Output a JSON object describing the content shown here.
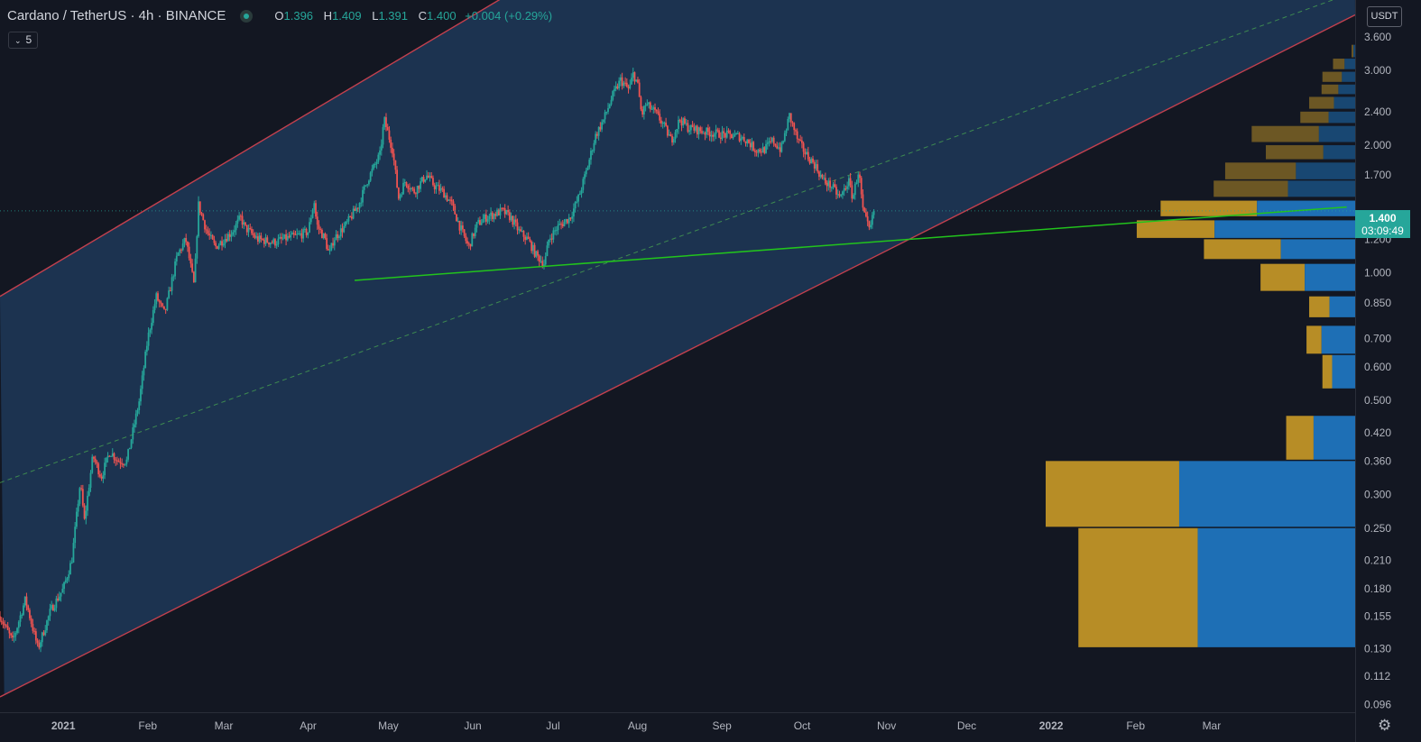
{
  "header": {
    "symbol": "Cardano / TetherUS",
    "interval": "4h",
    "exchange": "BINANCE",
    "ohlc": {
      "o_label": "O",
      "o": "1.396",
      "h_label": "H",
      "h": "1.409",
      "l_label": "L",
      "l": "1.391",
      "c_label": "C",
      "c": "1.400",
      "change": "+0.004 (+0.29%)"
    },
    "indicator_count": "5"
  },
  "currency_badge": "USDT",
  "last_price": {
    "value": "1.400",
    "countdown": "03:09:49"
  },
  "colors": {
    "background": "#131722",
    "channel_fill": "#1c3553",
    "channel_border": "#c2404e",
    "trendline": "#22c41c",
    "midline": "#4caf50",
    "up": "#26a69a",
    "down": "#ef5350",
    "vp_buy": "#b78d26",
    "vp_sell": "#1e6fb5"
  },
  "chart_data": {
    "type": "candlestick",
    "symbol": "ADAUSDT",
    "timeframe": "4h",
    "y_scale": "log",
    "ylim": [
      0.092,
      4.4
    ],
    "y_ticks": [
      {
        "v": 3.6,
        "label": "3.600"
      },
      {
        "v": 3.0,
        "label": "3.000"
      },
      {
        "v": 2.4,
        "label": "2.400"
      },
      {
        "v": 2.0,
        "label": "2.000"
      },
      {
        "v": 1.7,
        "label": "1.700"
      },
      {
        "v": 1.2,
        "label": "1.200"
      },
      {
        "v": 1.0,
        "label": "1.000"
      },
      {
        "v": 0.85,
        "label": "0.850"
      },
      {
        "v": 0.7,
        "label": "0.700"
      },
      {
        "v": 0.6,
        "label": "0.600"
      },
      {
        "v": 0.5,
        "label": "0.500"
      },
      {
        "v": 0.42,
        "label": "0.420"
      },
      {
        "v": 0.36,
        "label": "0.360"
      },
      {
        "v": 0.3,
        "label": "0.300"
      },
      {
        "v": 0.25,
        "label": "0.250"
      },
      {
        "v": 0.21,
        "label": "0.210"
      },
      {
        "v": 0.18,
        "label": "0.180"
      },
      {
        "v": 0.155,
        "label": "0.155"
      },
      {
        "v": 0.13,
        "label": "0.130"
      },
      {
        "v": 0.112,
        "label": "0.112"
      },
      {
        "v": 0.096,
        "label": "0.096"
      }
    ],
    "x_labels": [
      {
        "t": 0.0,
        "label": "2021",
        "bold": true
      },
      {
        "t": 1.0,
        "label": "Feb",
        "bold": false
      },
      {
        "t": 1.9,
        "label": "Mar",
        "bold": false
      },
      {
        "t": 2.9,
        "label": "Apr",
        "bold": false
      },
      {
        "t": 3.85,
        "label": "May",
        "bold": false
      },
      {
        "t": 4.85,
        "label": "Jun",
        "bold": false
      },
      {
        "t": 5.8,
        "label": "Jul",
        "bold": false
      },
      {
        "t": 6.8,
        "label": "Aug",
        "bold": false
      },
      {
        "t": 7.8,
        "label": "Sep",
        "bold": false
      },
      {
        "t": 8.75,
        "label": "Oct",
        "bold": false
      },
      {
        "t": 9.75,
        "label": "Nov",
        "bold": false
      },
      {
        "t": 10.7,
        "label": "Dec",
        "bold": false
      },
      {
        "t": 11.7,
        "label": "2022",
        "bold": true
      },
      {
        "t": 12.7,
        "label": "Feb",
        "bold": false
      },
      {
        "t": 13.6,
        "label": "Mar",
        "bold": false
      }
    ],
    "x_range_months": [
      -0.75,
      15.3
    ],
    "price_path": [
      [
        -0.75,
        0.155
      ],
      [
        -0.6,
        0.135
      ],
      [
        -0.45,
        0.17
      ],
      [
        -0.3,
        0.13
      ],
      [
        -0.15,
        0.16
      ],
      [
        0.0,
        0.18
      ],
      [
        0.1,
        0.21
      ],
      [
        0.2,
        0.32
      ],
      [
        0.25,
        0.26
      ],
      [
        0.35,
        0.37
      ],
      [
        0.45,
        0.33
      ],
      [
        0.55,
        0.38
      ],
      [
        0.65,
        0.36
      ],
      [
        0.75,
        0.36
      ],
      [
        0.9,
        0.5
      ],
      [
        1.0,
        0.7
      ],
      [
        1.1,
        0.88
      ],
      [
        1.2,
        0.8
      ],
      [
        1.35,
        1.1
      ],
      [
        1.45,
        1.2
      ],
      [
        1.55,
        0.93
      ],
      [
        1.6,
        1.45
      ],
      [
        1.7,
        1.25
      ],
      [
        1.8,
        1.15
      ],
      [
        1.9,
        1.2
      ],
      [
        2.0,
        1.25
      ],
      [
        2.1,
        1.35
      ],
      [
        2.15,
        1.28
      ],
      [
        2.3,
        1.2
      ],
      [
        2.5,
        1.18
      ],
      [
        2.6,
        1.2
      ],
      [
        2.75,
        1.22
      ],
      [
        2.9,
        1.25
      ],
      [
        2.97,
        1.48
      ],
      [
        3.0,
        1.3
      ],
      [
        3.1,
        1.2
      ],
      [
        3.15,
        1.1
      ],
      [
        3.2,
        1.2
      ],
      [
        3.35,
        1.3
      ],
      [
        3.5,
        1.45
      ],
      [
        3.6,
        1.65
      ],
      [
        3.75,
        1.9
      ],
      [
        3.8,
        2.3
      ],
      [
        3.9,
        1.95
      ],
      [
        3.97,
        1.5
      ],
      [
        4.05,
        1.65
      ],
      [
        4.15,
        1.55
      ],
      [
        4.3,
        1.7
      ],
      [
        4.4,
        1.6
      ],
      [
        4.5,
        1.55
      ],
      [
        4.6,
        1.45
      ],
      [
        4.7,
        1.28
      ],
      [
        4.8,
        1.15
      ],
      [
        4.9,
        1.3
      ],
      [
        5.0,
        1.35
      ],
      [
        5.2,
        1.4
      ],
      [
        5.3,
        1.35
      ],
      [
        5.4,
        1.25
      ],
      [
        5.5,
        1.2
      ],
      [
        5.6,
        1.1
      ],
      [
        5.7,
        1.05
      ],
      [
        5.75,
        1.2
      ],
      [
        5.85,
        1.28
      ],
      [
        6.0,
        1.35
      ],
      [
        6.1,
        1.5
      ],
      [
        6.2,
        1.75
      ],
      [
        6.3,
        2.1
      ],
      [
        6.4,
        2.3
      ],
      [
        6.5,
        2.6
      ],
      [
        6.6,
        2.85
      ],
      [
        6.7,
        2.7
      ],
      [
        6.75,
        2.95
      ],
      [
        6.8,
        2.8
      ],
      [
        6.85,
        2.35
      ],
      [
        6.9,
        2.5
      ],
      [
        7.0,
        2.4
      ],
      [
        7.1,
        2.25
      ],
      [
        7.2,
        2.05
      ],
      [
        7.3,
        2.3
      ],
      [
        7.4,
        2.2
      ],
      [
        7.6,
        2.15
      ],
      [
        7.8,
        2.12
      ],
      [
        8.0,
        2.1
      ],
      [
        8.1,
        2.05
      ],
      [
        8.2,
        1.95
      ],
      [
        8.3,
        1.95
      ],
      [
        8.4,
        2.05
      ],
      [
        8.5,
        1.95
      ],
      [
        8.6,
        2.35
      ],
      [
        8.7,
        2.05
      ],
      [
        8.8,
        1.9
      ],
      [
        8.9,
        1.8
      ],
      [
        9.0,
        1.65
      ],
      [
        9.1,
        1.6
      ],
      [
        9.2,
        1.5
      ],
      [
        9.3,
        1.65
      ],
      [
        9.35,
        1.5
      ],
      [
        9.42,
        1.75
      ],
      [
        9.47,
        1.4
      ],
      [
        9.55,
        1.25
      ],
      [
        9.6,
        1.4
      ]
    ],
    "candle_count": 560,
    "last_close": 1.4,
    "channel": {
      "upper": [
        [
          -0.75,
          0.88
        ],
        [
          7.4,
          8.1
        ]
      ],
      "lower": [
        [
          -0.75,
          0.1
        ],
        [
          13.2,
          2.5
        ]
      ],
      "mid_dashed": [
        [
          -0.75,
          0.32
        ],
        [
          15.3,
          4.6
        ]
      ]
    },
    "trendline": {
      "from": [
        3.45,
        0.96
      ],
      "to": [
        15.2,
        1.43
      ]
    },
    "volume_profile": [
      {
        "lo": 0.13,
        "hi": 0.25,
        "buy": 135,
        "total": 313,
        "faded": false
      },
      {
        "lo": 0.25,
        "hi": 0.36,
        "buy": 151,
        "total": 350,
        "faded": false
      },
      {
        "lo": 0.36,
        "hi": 0.46,
        "buy": 31,
        "total": 78,
        "faded": false
      },
      {
        "lo": 0.53,
        "hi": 0.64,
        "buy": 11,
        "total": 37,
        "faded": false
      },
      {
        "lo": 0.64,
        "hi": 0.75,
        "buy": 17,
        "total": 55,
        "faded": false
      },
      {
        "lo": 0.78,
        "hi": 0.88,
        "buy": 23,
        "total": 52,
        "faded": false
      },
      {
        "lo": 0.9,
        "hi": 1.05,
        "buy": 50,
        "total": 107,
        "faded": false
      },
      {
        "lo": 1.07,
        "hi": 1.2,
        "buy": 87,
        "total": 171,
        "faded": false
      },
      {
        "lo": 1.2,
        "hi": 1.33,
        "buy": 88,
        "total": 247,
        "faded": false
      },
      {
        "lo": 1.35,
        "hi": 1.48,
        "buy": 109,
        "total": 220,
        "faded": false
      },
      {
        "lo": 1.5,
        "hi": 1.65,
        "buy": 84,
        "total": 160,
        "faded": true
      },
      {
        "lo": 1.65,
        "hi": 1.82,
        "buy": 80,
        "total": 147,
        "faded": true
      },
      {
        "lo": 1.84,
        "hi": 2.0,
        "buy": 65,
        "total": 101,
        "faded": true
      },
      {
        "lo": 2.02,
        "hi": 2.22,
        "buy": 76,
        "total": 117,
        "faded": true
      },
      {
        "lo": 2.24,
        "hi": 2.4,
        "buy": 32,
        "total": 62,
        "faded": true
      },
      {
        "lo": 2.42,
        "hi": 2.6,
        "buy": 28,
        "total": 52,
        "faded": true
      },
      {
        "lo": 2.62,
        "hi": 2.78,
        "buy": 19,
        "total": 38,
        "faded": true
      },
      {
        "lo": 2.8,
        "hi": 2.98,
        "buy": 22,
        "total": 37,
        "faded": true
      },
      {
        "lo": 3.0,
        "hi": 3.2,
        "buy": 13,
        "total": 25,
        "faded": true
      },
      {
        "lo": 3.2,
        "hi": 3.45,
        "buy": 2,
        "total": 4,
        "faded": true
      }
    ]
  }
}
